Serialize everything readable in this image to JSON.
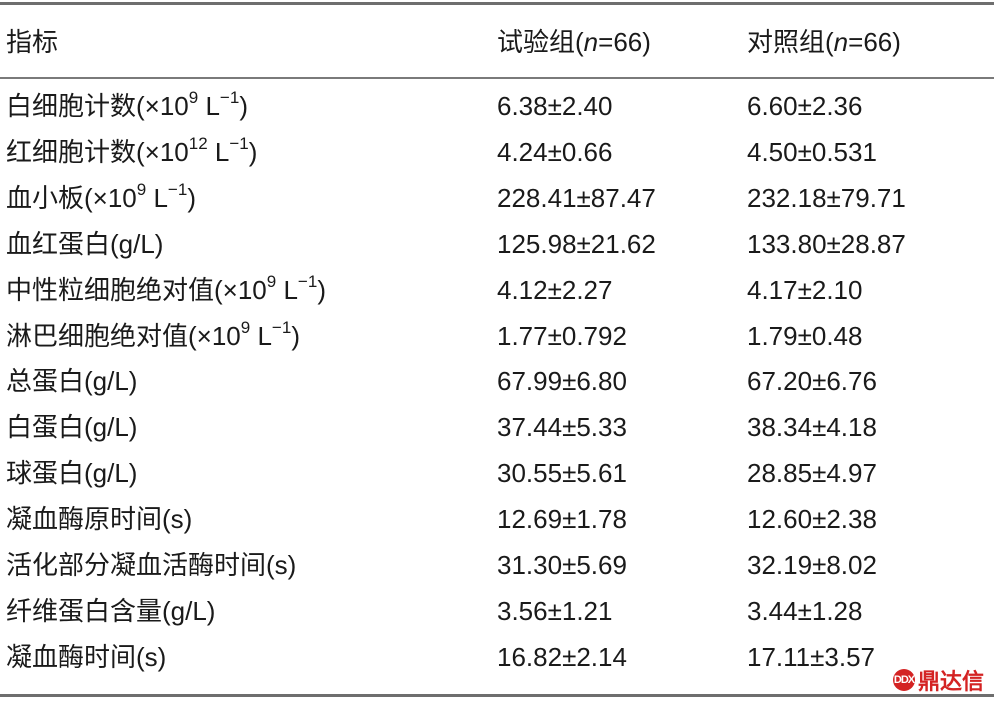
{
  "table": {
    "header": {
      "indicator": "指标",
      "test_group_prefix": "试验组(",
      "test_group_n": "n",
      "test_group_suffix": "=66)",
      "control_group_prefix": "对照组(",
      "control_group_n": "n",
      "control_group_suffix": "=66)"
    },
    "rows": [
      {
        "label": "白细胞计数(×10",
        "sup1": "9",
        "mid": " L",
        "sup2": "−1",
        "end": ")",
        "test": "6.38±2.40",
        "control": "6.60±2.36"
      },
      {
        "label": "红细胞计数(×10",
        "sup1": "12",
        "mid": " L",
        "sup2": "−1",
        "end": ")",
        "test": "4.24±0.66",
        "control": "4.50±0.531"
      },
      {
        "label": "血小板(×10",
        "sup1": "9",
        "mid": " L",
        "sup2": "−1",
        "end": ")",
        "test": "228.41±87.47",
        "control": "232.18±79.71"
      },
      {
        "label": "血红蛋白(g/L)",
        "test": "125.98±21.62",
        "control": "133.80±28.87"
      },
      {
        "label": "中性粒细胞绝对值(×10",
        "sup1": "9",
        "mid": " L",
        "sup2": "−1",
        "end": ")",
        "test": "4.12±2.27",
        "control": "4.17±2.10"
      },
      {
        "label": "淋巴细胞绝对值(×10",
        "sup1": "9",
        "mid": " L",
        "sup2": "−1",
        "end": ")",
        "test": "1.77±0.792",
        "control": "1.79±0.48"
      },
      {
        "label": "总蛋白(g/L)",
        "test": "67.99±6.80",
        "control": "67.20±6.76"
      },
      {
        "label": "白蛋白(g/L)",
        "test": "37.44±5.33",
        "control": "38.34±4.18"
      },
      {
        "label": "球蛋白(g/L)",
        "test": "30.55±5.61",
        "control": "28.85±4.97"
      },
      {
        "label": "凝血酶原时间(s)",
        "test": "12.69±1.78",
        "control": "12.60±2.38"
      },
      {
        "label": "活化部分凝血活酶时间(s)",
        "test": "31.30±5.69",
        "control": "32.19±8.02"
      },
      {
        "label": "纤维蛋白含量(g/L)",
        "test": "3.56±1.21",
        "control": "3.44±1.28"
      },
      {
        "label": "凝血酶时间(s)",
        "test": "16.82±2.14",
        "control": "17.11±3.57"
      }
    ]
  },
  "watermark": {
    "icon_text": "DDX",
    "text": "鼎达信",
    "color": "#d42323"
  }
}
